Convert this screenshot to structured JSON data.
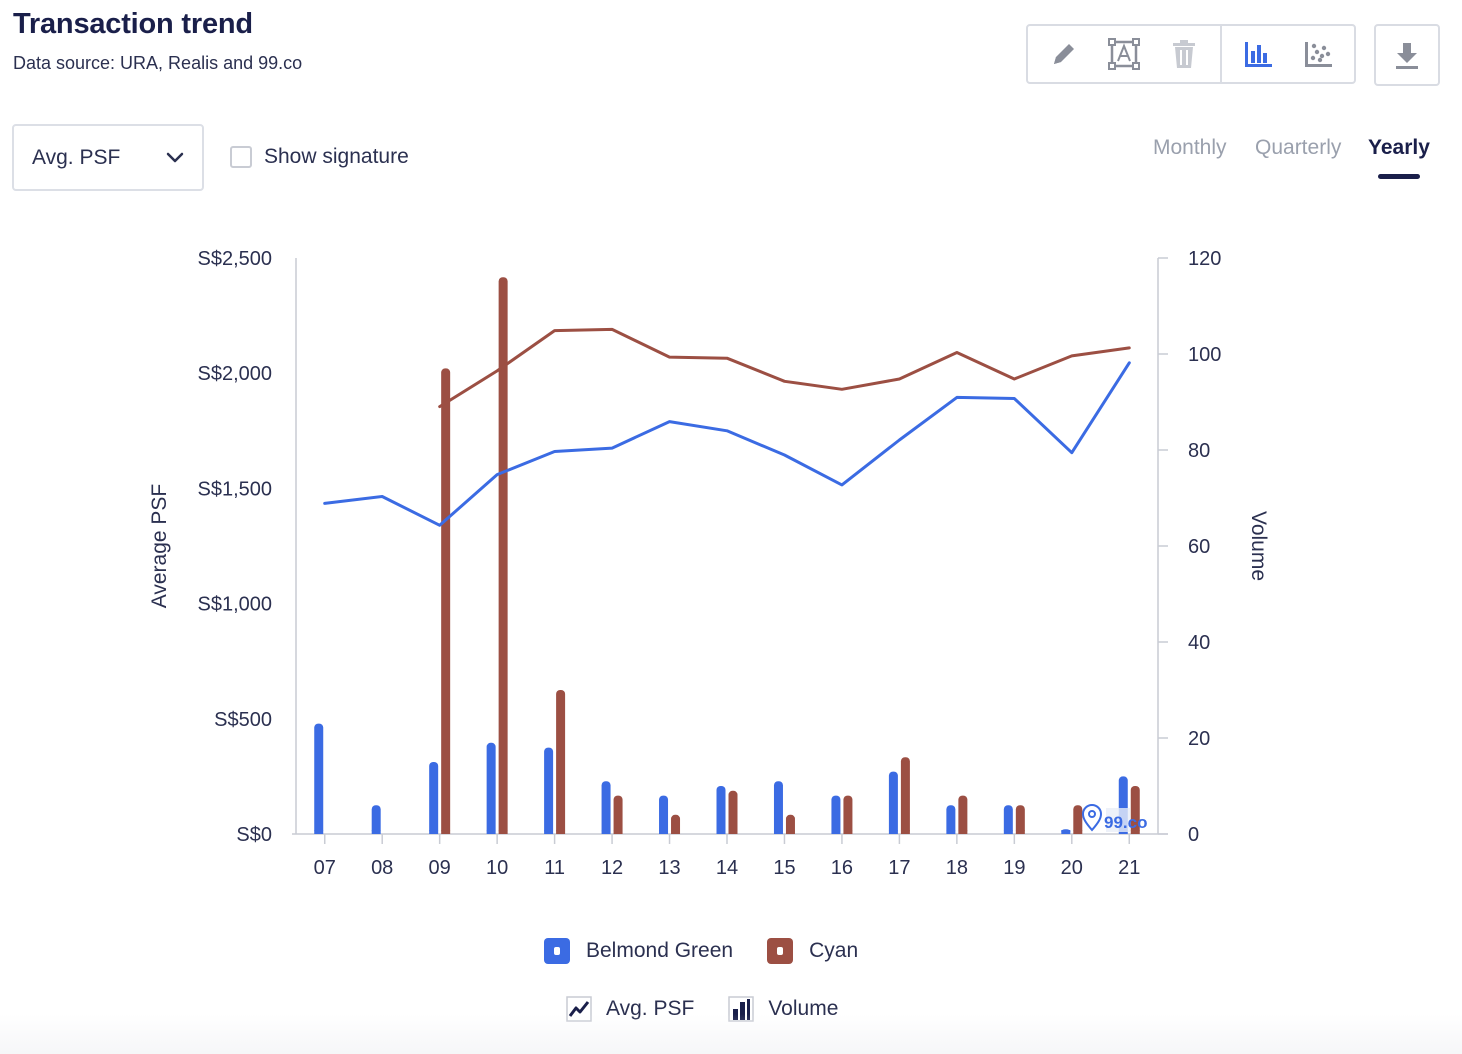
{
  "header": {
    "title": "Transaction trend",
    "subtitle": "Data source: URA, Realis and 99.co"
  },
  "toolbar": {
    "icons": [
      "pencil-icon",
      "text-frame-icon",
      "trash-icon",
      "bar-chart-icon",
      "scatter-plot-icon"
    ],
    "download_icon": "download-icon"
  },
  "controls": {
    "metric_select": "Avg. PSF",
    "show_signature": "Show signature",
    "show_signature_checked": false,
    "period_tabs": [
      "Monthly",
      "Quarterly",
      "Yearly"
    ],
    "active_period": "Yearly"
  },
  "watermark": "99.co",
  "legend": {
    "series": [
      "Belmond Green",
      "Cyan"
    ],
    "types": [
      "Avg. PSF",
      "Volume"
    ]
  },
  "colors": {
    "belmond_green": "#3b6be3",
    "cyan": "#9c4f43",
    "axis": "#c9ccd4",
    "text": "#2b3050"
  },
  "chart_data": {
    "type": "bar+line",
    "categories": [
      "07",
      "08",
      "09",
      "10",
      "11",
      "12",
      "13",
      "14",
      "15",
      "16",
      "17",
      "18",
      "19",
      "20",
      "21"
    ],
    "ylabel": "Average PSF",
    "y2label": "Volume",
    "ylim": [
      0,
      2500
    ],
    "y2lim": [
      0,
      120
    ],
    "yticks": [
      "S$0",
      "S$500",
      "S$1,000",
      "S$1,500",
      "S$2,000",
      "S$2,500"
    ],
    "y2ticks": [
      "0",
      "20",
      "40",
      "60",
      "80",
      "100",
      "120"
    ],
    "grid": false,
    "legend_position": "bottom",
    "series": [
      {
        "name": "Belmond Green",
        "color": "#3b6be3",
        "avg_psf": [
          1435,
          1465,
          1340,
          1560,
          1660,
          1675,
          1790,
          1750,
          1645,
          1515,
          1710,
          1895,
          1890,
          1655,
          2045
        ],
        "volume": [
          23,
          6,
          15,
          19,
          18,
          11,
          8,
          10,
          11,
          8,
          13,
          6,
          6,
          1,
          12
        ]
      },
      {
        "name": "Cyan",
        "color": "#9c4f43",
        "avg_psf": [
          null,
          null,
          1855,
          2010,
          2185,
          2190,
          2070,
          2065,
          1965,
          1930,
          1975,
          2090,
          1975,
          2075,
          2110
        ],
        "volume": [
          0,
          0,
          97,
          116,
          30,
          8,
          4,
          9,
          4,
          8,
          16,
          8,
          6,
          6,
          10
        ]
      }
    ]
  }
}
